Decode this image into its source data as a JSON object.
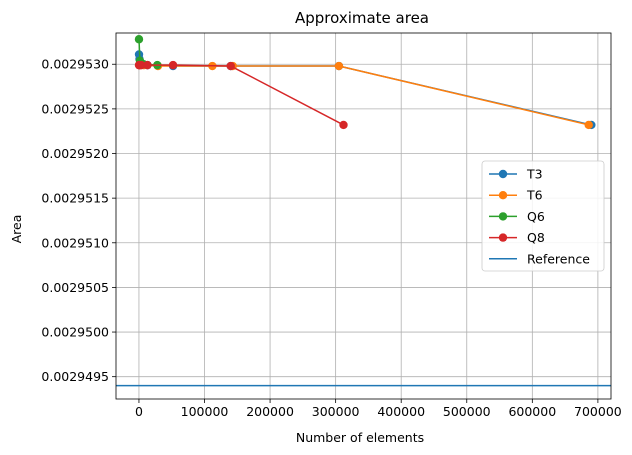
{
  "chart_data": {
    "type": "line",
    "title": "Approximate area",
    "xlabel": "Number of elements",
    "ylabel": "Area",
    "xlim": [
      -35000,
      720000
    ],
    "ylim": [
      0.00294925,
      0.00295335
    ],
    "xticks": [
      0,
      100000,
      200000,
      300000,
      400000,
      500000,
      600000,
      700000
    ],
    "xtick_labels": [
      "0",
      "100000",
      "200000",
      "300000",
      "400000",
      "500000",
      "600000",
      "700000"
    ],
    "yticks": [
      0.0029495,
      0.00295,
      0.0029505,
      0.002951,
      0.0029515,
      0.002952,
      0.0029525,
      0.002953
    ],
    "ytick_labels": [
      "0.0029495",
      "0.0029500",
      "0.0029505",
      "0.0029510",
      "0.0029515",
      "0.0029520",
      "0.0029525",
      "0.0029530"
    ],
    "grid": true,
    "legend_position": "center-right",
    "series": [
      {
        "name": "T3",
        "color": "#1f77b4",
        "marker": "circle",
        "x": [
          100,
          800,
          3500,
          13000,
          52000,
          140000,
          305000,
          690000
        ],
        "y": [
          0.00295311,
          0.00295306,
          0.002953,
          0.00295299,
          0.00295298,
          0.00295298,
          0.00295298,
          0.00295232
        ]
      },
      {
        "name": "T6",
        "color": "#ff7f0e",
        "marker": "circle",
        "x": [
          300,
          2000,
          7500,
          29000,
          112000,
          143000,
          305000,
          686000
        ],
        "y": [
          0.00295299,
          0.00295299,
          0.00295299,
          0.00295298,
          0.00295298,
          0.00295298,
          0.00295298,
          0.00295232
        ]
      },
      {
        "name": "Q6",
        "color": "#2ca02c",
        "marker": "circle",
        "x": [
          50,
          1500,
          7000,
          28000
        ],
        "y": [
          0.00295328,
          0.00295304,
          0.002953,
          0.00295299
        ]
      },
      {
        "name": "Q8",
        "color": "#d62728",
        "marker": "circle",
        "x": [
          100,
          900,
          3500,
          13000,
          52000,
          140000,
          312000
        ],
        "y": [
          0.00295299,
          0.00295299,
          0.00295299,
          0.00295299,
          0.00295299,
          0.00295298,
          0.00295232
        ]
      }
    ],
    "reference": {
      "name": "Reference",
      "color": "#1f77b4",
      "y": 0.0029494
    }
  }
}
